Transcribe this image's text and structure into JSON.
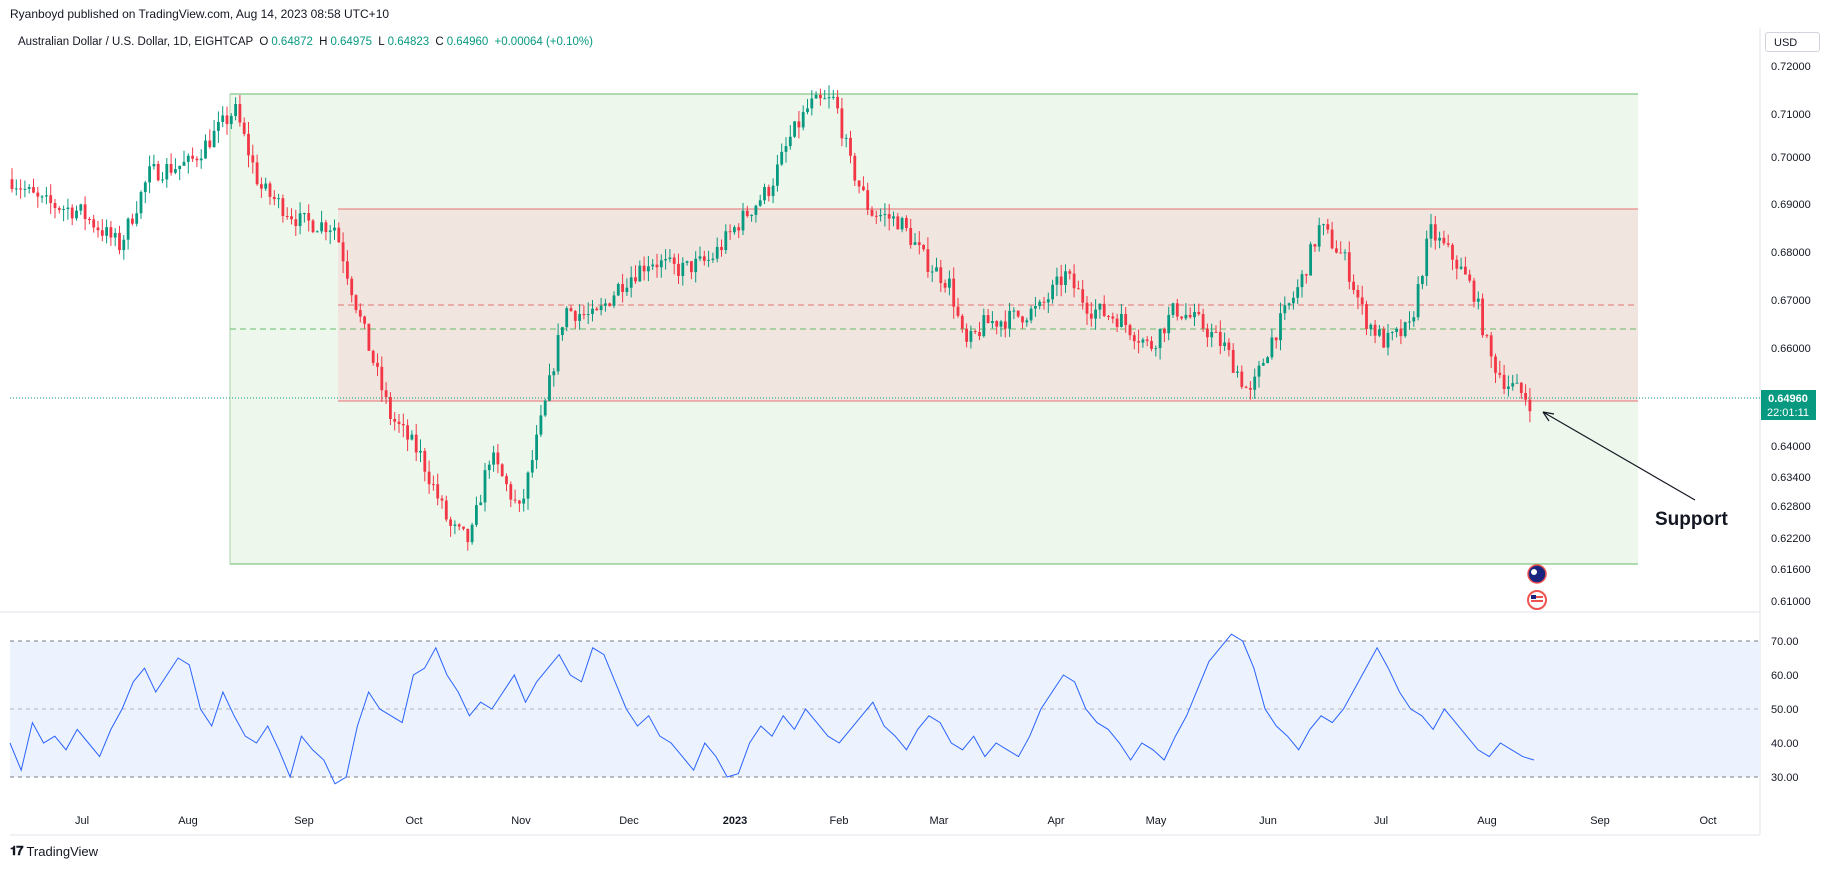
{
  "header": {
    "publisher": "Ryanboyd published on TradingView.com, Aug 14, 2023 08:58 UTC+10",
    "symbol_name": "Australian Dollar / U.S. Dollar, 1D, EIGHTCAP",
    "open_label": "O",
    "open": "0.64872",
    "high_label": "H",
    "high": "0.64975",
    "low_label": "L",
    "low": "0.64823",
    "close_label": "C",
    "close": "0.64960",
    "change": "+0.00064 (+0.10%)",
    "currency": "USD"
  },
  "price_axis": {
    "ticks": [
      "0.72000",
      "0.71000",
      "0.70000",
      "0.69000",
      "0.68000",
      "0.67000",
      "0.66000",
      "0.64000",
      "0.63400",
      "0.62800",
      "0.62200",
      "0.61600",
      "0.61000"
    ],
    "last_price": "0.64960",
    "countdown": "22:01:11"
  },
  "time_axis": {
    "labels": [
      "Jul",
      "Aug",
      "Sep",
      "Oct",
      "Nov",
      "Dec",
      "2023",
      "Feb",
      "Mar",
      "Apr",
      "May",
      "Jun",
      "Jul",
      "Aug",
      "Sep",
      "Oct"
    ]
  },
  "rsi_axis": {
    "ticks": [
      "70.00",
      "60.00",
      "50.00",
      "40.00",
      "30.00"
    ]
  },
  "annotation": {
    "text": "Support"
  },
  "colors": {
    "up": "#089981",
    "down": "#f23645",
    "rsi_line": "#2962ff",
    "range_fill": "#e8f5e9",
    "zone_fill": "#f3e5d8",
    "last_price": "#089981"
  },
  "icons": [
    "au-flag-icon",
    "us-flag-icon"
  ],
  "footer": {
    "brand": "TradingView"
  },
  "chart_data": {
    "type": "candlestick",
    "title": "",
    "series": [
      {
        "name": "",
        "x": [
          "Jun",
          "Jul",
          "Aug",
          "Sep",
          "Oct",
          "Nov",
          "Dec",
          "Jan 2023",
          "Feb",
          "Mar",
          "Apr",
          "May",
          "Jun",
          "Jul",
          "Aug"
        ],
        "close": [
          0.695,
          0.69,
          0.712,
          0.685,
          0.628,
          0.655,
          0.675,
          0.7,
          0.692,
          0.66,
          0.672,
          0.658,
          0.672,
          0.688,
          0.6496
        ]
      }
    ],
    "ylim": [
      0.605,
      0.725
    ],
    "rsi": {
      "ylim": [
        25,
        75
      ],
      "levels": [
        70,
        50,
        30
      ],
      "values": [
        40,
        32,
        46,
        40,
        42,
        38,
        44,
        40,
        36,
        44,
        50,
        58,
        62,
        55,
        60,
        65,
        63,
        50,
        45,
        55,
        48,
        42,
        40,
        45,
        38,
        30,
        42,
        38,
        35,
        28,
        30,
        45,
        55,
        50,
        48,
        46,
        60,
        62,
        68,
        60,
        55,
        48,
        52,
        50,
        55,
        60,
        52,
        58,
        62,
        66,
        60,
        58,
        68,
        66,
        58,
        50,
        45,
        48,
        42,
        40,
        36,
        32,
        40,
        36,
        30,
        31,
        40,
        45,
        42,
        48,
        44,
        50,
        46,
        42,
        40,
        44,
        48,
        52,
        45,
        42,
        38,
        44,
        48,
        46,
        40,
        38,
        42,
        36,
        40,
        38,
        36,
        42,
        50,
        55,
        60,
        58,
        50,
        46,
        44,
        40,
        35,
        40,
        38,
        35,
        42,
        48,
        56,
        64,
        68,
        72,
        70,
        62,
        50,
        45,
        42,
        38,
        44,
        48,
        46,
        50,
        56,
        62,
        68,
        62,
        55,
        50,
        48,
        44,
        50,
        46,
        42,
        38,
        36,
        40,
        38,
        36,
        35
      ]
    },
    "zones": [
      {
        "name": "range",
        "top": 0.7135,
        "bottom": 0.617
      },
      {
        "name": "resistance",
        "value": 0.6885
      },
      {
        "name": "support",
        "value": 0.649
      },
      {
        "name": "mid-upper",
        "value": 0.6685
      },
      {
        "name": "mid-lower",
        "value": 0.6635
      }
    ]
  }
}
